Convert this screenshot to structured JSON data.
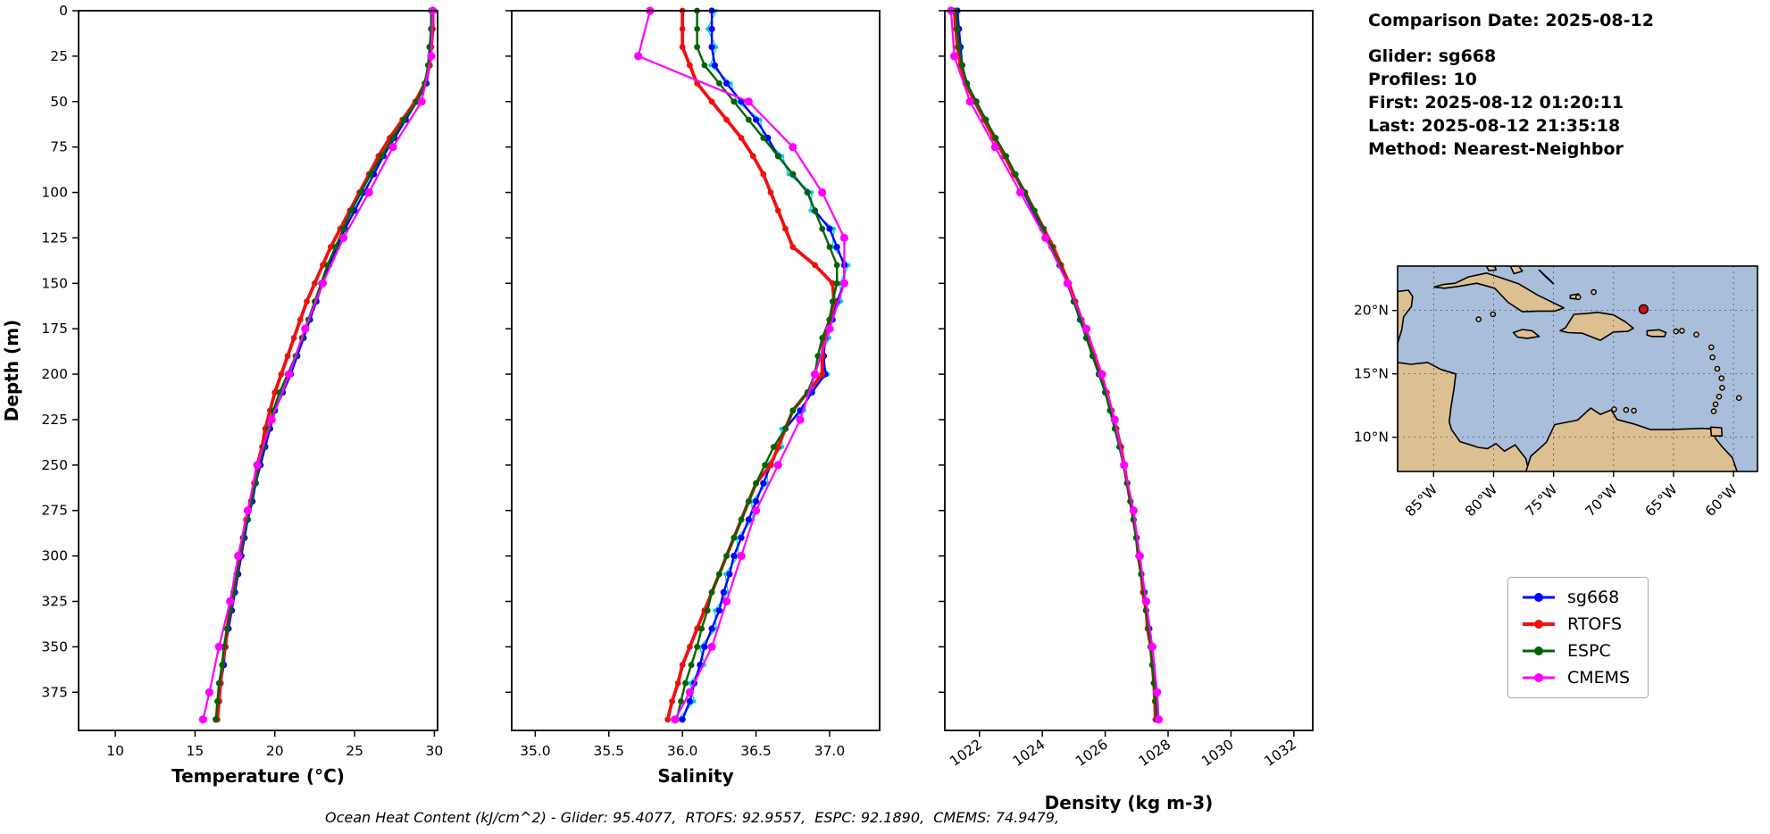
{
  "info": {
    "comparison_date": "Comparison Date: 2025-08-12",
    "glider": "Glider: sg668",
    "profiles": "Profiles: 10",
    "first": "First: 2025-08-12 01:20:11",
    "last": "Last: 2025-08-12 21:35:18",
    "method": "Method: Nearest-Neighbor"
  },
  "footer": {
    "text": "Ocean Heat Content (kJ/cm^2) - Glider: 95.4077,  RTOFS: 92.9557,  ESPC: 92.1890,  CMEMS: 74.9479,"
  },
  "legend": {
    "items": [
      {
        "label": "sg668",
        "color": "#0000ff",
        "lw": 3,
        "ms": 5
      },
      {
        "label": "RTOFS",
        "color": "#ee1111",
        "lw": 4,
        "ms": 5
      },
      {
        "label": "ESPC",
        "color": "#006400",
        "lw": 3,
        "ms": 5
      },
      {
        "label": "CMEMS",
        "color": "#ff00ff",
        "lw": 3,
        "ms": 5
      }
    ]
  },
  "map": {
    "lat_ticks": [
      "20°N",
      "15°N",
      "10°N"
    ],
    "lat_tick_values": [
      20,
      15,
      10
    ],
    "lon_ticks": [
      "85°W",
      "80°W",
      "75°W",
      "70°W",
      "65°W",
      "60°W"
    ],
    "lon_tick_values": [
      -85,
      -80,
      -75,
      -70,
      -65,
      -60
    ],
    "lon_range": [
      -88,
      -58
    ],
    "lat_range": [
      7.3,
      23.5
    ],
    "marker": {
      "lon": -67.5,
      "lat": 20.1,
      "color": "#cc1111"
    },
    "ocean_color": "#a8bedb",
    "land_color": "#ddc092"
  },
  "chart_data": [
    {
      "type": "line",
      "id": "temperature",
      "xlabel": "Temperature (°C)",
      "ylabel": "Depth (m)",
      "xlim": [
        7.7,
        30.2
      ],
      "xticks": [
        10,
        15,
        20,
        25,
        30
      ],
      "xtick_labels": [
        "10",
        "15",
        "20",
        "25",
        "30"
      ],
      "ylim": [
        0,
        396
      ],
      "yticks": [
        0,
        25,
        50,
        75,
        100,
        125,
        150,
        175,
        200,
        225,
        250,
        275,
        300,
        325,
        350,
        375
      ],
      "depth_grids": {
        "fine": [
          0,
          10,
          20,
          30,
          40,
          50,
          60,
          70,
          80,
          90,
          100,
          110,
          120,
          130,
          140,
          150,
          160,
          170,
          180,
          190,
          200,
          210,
          220,
          230,
          240,
          250,
          260,
          270,
          280,
          290,
          300,
          310,
          320,
          330,
          340,
          350,
          360,
          370,
          380,
          390
        ],
        "coarse": [
          0,
          25,
          50,
          75,
          100,
          125,
          150,
          175,
          200,
          225,
          250,
          275,
          300,
          325,
          350,
          375,
          390
        ]
      },
      "series": [
        {
          "name": "glider_raw",
          "color": "#00cfe0",
          "lw": 1.4,
          "ms": 2.2,
          "grid": "fine",
          "values": [
            29.85,
            29.74,
            29.76,
            29.64,
            29.55,
            28.84,
            28.26,
            27.44,
            26.86,
            26.14,
            25.66,
            24.94,
            24.46,
            23.84,
            23.46,
            22.94,
            22.66,
            22.14,
            21.86,
            21.34,
            21.06,
            20.44,
            20.06,
            19.64,
            19.46,
            19.04,
            18.86,
            18.54,
            18.36,
            18.04,
            17.96,
            17.64,
            17.56,
            17.24,
            17.16,
            16.84,
            16.86,
            16.54,
            16.56,
            16.24
          ]
        },
        {
          "name": "sg668",
          "color": "#0000ff",
          "lw": 2.4,
          "ms": 3.6,
          "grid": "fine",
          "values": [
            29.8,
            29.8,
            29.7,
            29.7,
            29.5,
            28.9,
            28.2,
            27.5,
            26.8,
            26.2,
            25.6,
            25.0,
            24.4,
            23.9,
            23.4,
            23.0,
            22.6,
            22.2,
            21.8,
            21.4,
            21.0,
            20.5,
            20.0,
            19.7,
            19.4,
            19.1,
            18.8,
            18.6,
            18.3,
            18.1,
            17.9,
            17.7,
            17.5,
            17.3,
            17.1,
            16.9,
            16.8,
            16.6,
            16.5,
            16.3
          ]
        },
        {
          "name": "RTOFS",
          "color": "#ee1111",
          "lw": 3.8,
          "ms": 3.4,
          "grid": "fine",
          "values": [
            29.9,
            29.9,
            29.8,
            29.7,
            29.4,
            28.8,
            28.0,
            27.2,
            26.5,
            25.9,
            25.3,
            24.7,
            24.1,
            23.5,
            23.0,
            22.5,
            22.0,
            21.6,
            21.2,
            20.8,
            20.4,
            20.0,
            19.7,
            19.4,
            19.2,
            18.9,
            18.7,
            18.5,
            18.2,
            18.0,
            17.8,
            17.6,
            17.4,
            17.2,
            17.0,
            16.9,
            16.7,
            16.6,
            16.5,
            16.4
          ]
        },
        {
          "name": "ESPC",
          "color": "#006400",
          "lw": 2.4,
          "ms": 3.4,
          "grid": "fine",
          "values": [
            29.8,
            29.8,
            29.7,
            29.6,
            29.4,
            28.9,
            28.1,
            27.4,
            26.7,
            26.0,
            25.4,
            24.8,
            24.3,
            23.8,
            23.3,
            22.9,
            22.5,
            22.1,
            21.7,
            21.3,
            20.8,
            20.3,
            19.9,
            19.6,
            19.3,
            19.0,
            18.8,
            18.5,
            18.3,
            18.0,
            17.8,
            17.6,
            17.4,
            17.2,
            17.0,
            16.8,
            16.7,
            16.5,
            16.4,
            16.3
          ]
        },
        {
          "name": "CMEMS",
          "color": "#ff00ff",
          "lw": 2.2,
          "ms": 4.6,
          "grid": "coarse",
          "values": [
            29.9,
            29.8,
            29.2,
            27.4,
            25.9,
            24.3,
            23.0,
            21.9,
            20.9,
            19.8,
            18.9,
            18.3,
            17.7,
            17.2,
            16.5,
            15.9,
            15.5
          ]
        }
      ]
    },
    {
      "type": "line",
      "id": "salinity",
      "xlabel": "Salinity",
      "ylabel": "",
      "xlim": [
        34.84,
        37.34
      ],
      "xticks": [
        35.0,
        35.5,
        36.0,
        36.5,
        37.0
      ],
      "xtick_labels": [
        "35.0",
        "35.5",
        "36.0",
        "36.5",
        "37.0"
      ],
      "ylim": [
        0,
        396
      ],
      "yticks": [
        0,
        25,
        50,
        75,
        100,
        125,
        150,
        175,
        200,
        225,
        250,
        275,
        300,
        325,
        350,
        375
      ],
      "depth_grids": {
        "fine": [
          0,
          10,
          20,
          30,
          40,
          50,
          60,
          70,
          80,
          90,
          100,
          110,
          120,
          130,
          140,
          150,
          160,
          170,
          180,
          190,
          200,
          210,
          220,
          230,
          240,
          250,
          260,
          270,
          280,
          290,
          300,
          310,
          320,
          330,
          340,
          350,
          360,
          370,
          380,
          390
        ],
        "coarse": [
          0,
          25,
          50,
          75,
          100,
          125,
          150,
          175,
          200,
          225,
          250,
          275,
          300,
          325,
          350,
          375,
          390
        ]
      },
      "series": [
        {
          "name": "glider_raw",
          "color": "#00cfe0",
          "lw": 1.4,
          "ms": 2.2,
          "grid": "fine",
          "values": [
            36.23,
            36.17,
            36.23,
            36.19,
            36.33,
            36.37,
            36.53,
            36.55,
            36.68,
            36.72,
            36.88,
            36.87,
            37.03,
            37.02,
            37.13,
            37.07,
            37.08,
            36.99,
            37.0,
            36.93,
            36.99,
            36.85,
            36.83,
            36.67,
            36.68,
            36.57,
            36.58,
            36.47,
            36.48,
            36.37,
            36.38,
            36.29,
            36.31,
            36.22,
            36.23,
            36.12,
            36.15,
            36.05,
            36.08,
            35.97
          ]
        },
        {
          "name": "sg668",
          "color": "#0000ff",
          "lw": 2.4,
          "ms": 3.6,
          "grid": "fine",
          "values": [
            36.2,
            36.2,
            36.2,
            36.22,
            36.3,
            36.4,
            36.5,
            36.58,
            36.65,
            36.75,
            36.85,
            36.9,
            37.0,
            37.05,
            37.1,
            37.1,
            37.05,
            37.02,
            36.97,
            36.96,
            36.97,
            36.88,
            36.8,
            36.7,
            36.65,
            36.6,
            36.55,
            36.5,
            36.45,
            36.4,
            36.35,
            36.32,
            36.28,
            36.25,
            36.2,
            36.15,
            36.12,
            36.08,
            36.05,
            36.0
          ]
        },
        {
          "name": "RTOFS",
          "color": "#ee1111",
          "lw": 3.8,
          "ms": 3.4,
          "grid": "fine",
          "values": [
            36.0,
            36.0,
            36.0,
            36.05,
            36.1,
            36.2,
            36.3,
            36.4,
            36.48,
            36.55,
            36.6,
            36.65,
            36.7,
            36.75,
            36.9,
            37.02,
            37.03,
            37.0,
            36.96,
            36.95,
            36.95,
            36.85,
            36.75,
            36.7,
            36.65,
            36.6,
            36.5,
            36.45,
            36.4,
            36.35,
            36.3,
            36.25,
            36.2,
            36.15,
            36.1,
            36.05,
            36.0,
            35.97,
            35.93,
            35.9
          ]
        },
        {
          "name": "ESPC",
          "color": "#006400",
          "lw": 2.4,
          "ms": 3.4,
          "grid": "fine",
          "values": [
            36.1,
            36.1,
            36.1,
            36.15,
            36.25,
            36.35,
            36.45,
            36.55,
            36.65,
            36.75,
            36.85,
            36.9,
            36.95,
            37.0,
            37.05,
            37.05,
            37.02,
            37.0,
            36.95,
            36.92,
            36.9,
            36.85,
            36.75,
            36.7,
            36.62,
            36.56,
            36.5,
            36.45,
            36.4,
            36.35,
            36.3,
            36.25,
            36.2,
            36.17,
            36.13,
            36.1,
            36.06,
            36.02,
            35.99,
            35.96
          ]
        },
        {
          "name": "CMEMS",
          "color": "#ff00ff",
          "lw": 2.2,
          "ms": 4.6,
          "grid": "coarse",
          "values": [
            35.78,
            35.7,
            36.45,
            36.75,
            36.95,
            37.1,
            37.1,
            37.0,
            36.9,
            36.8,
            36.65,
            36.5,
            36.4,
            36.3,
            36.2,
            36.05,
            35.95
          ]
        }
      ]
    },
    {
      "type": "line",
      "id": "density",
      "xlabel": "Density (kg m-3)",
      "ylabel": "",
      "xlim": [
        1020.9,
        1032.6
      ],
      "xticks": [
        1022,
        1024,
        1026,
        1028,
        1030,
        1032
      ],
      "xtick_labels": [
        "1022",
        "1024",
        "1026",
        "1028",
        "1030",
        "1032"
      ],
      "ylim": [
        0,
        396
      ],
      "yticks": [
        0,
        25,
        50,
        75,
        100,
        125,
        150,
        175,
        200,
        225,
        250,
        275,
        300,
        325,
        350,
        375
      ],
      "depth_grids": {
        "fine": [
          0,
          10,
          20,
          30,
          40,
          50,
          60,
          70,
          80,
          90,
          100,
          110,
          120,
          130,
          140,
          150,
          160,
          170,
          180,
          190,
          200,
          210,
          220,
          230,
          240,
          250,
          260,
          270,
          280,
          290,
          300,
          310,
          320,
          330,
          340,
          350,
          360,
          370,
          380,
          390
        ],
        "coarse": [
          0,
          25,
          50,
          75,
          100,
          125,
          150,
          175,
          200,
          225,
          250,
          275,
          300,
          325,
          350,
          375,
          390
        ]
      },
      "series": [
        {
          "name": "glider_raw",
          "color": "#00cfe0",
          "lw": 1.4,
          "ms": 2.2,
          "grid": "fine",
          "values": [
            1021.34,
            1021.31,
            1021.44,
            1021.41,
            1021.64,
            1021.86,
            1022.24,
            1022.46,
            1022.84,
            1023.06,
            1023.44,
            1023.66,
            1024.04,
            1024.26,
            1024.59,
            1024.76,
            1025.04,
            1025.16,
            1025.44,
            1025.56,
            1025.84,
            1025.96,
            1026.24,
            1026.31,
            1026.54,
            1026.56,
            1026.74,
            1026.76,
            1026.94,
            1026.96,
            1027.14,
            1027.11,
            1027.29,
            1027.26,
            1027.44,
            1027.41,
            1027.54,
            1027.51,
            1027.64,
            1027.61
          ]
        },
        {
          "name": "sg668",
          "color": "#0000ff",
          "lw": 2.4,
          "ms": 3.6,
          "grid": "fine",
          "values": [
            1021.3,
            1021.35,
            1021.4,
            1021.45,
            1021.6,
            1021.9,
            1022.2,
            1022.5,
            1022.8,
            1023.1,
            1023.4,
            1023.7,
            1024.0,
            1024.3,
            1024.55,
            1024.8,
            1025.0,
            1025.2,
            1025.4,
            1025.6,
            1025.8,
            1026.0,
            1026.2,
            1026.35,
            1026.5,
            1026.6,
            1026.7,
            1026.8,
            1026.9,
            1027.0,
            1027.1,
            1027.15,
            1027.25,
            1027.3,
            1027.4,
            1027.45,
            1027.5,
            1027.55,
            1027.6,
            1027.65
          ]
        },
        {
          "name": "RTOFS",
          "color": "#ee1111",
          "lw": 3.8,
          "ms": 3.4,
          "grid": "fine",
          "values": [
            1021.2,
            1021.25,
            1021.3,
            1021.4,
            1021.55,
            1021.85,
            1022.15,
            1022.45,
            1022.8,
            1023.1,
            1023.45,
            1023.75,
            1024.05,
            1024.35,
            1024.6,
            1024.85,
            1025.05,
            1025.25,
            1025.45,
            1025.65,
            1025.85,
            1026.05,
            1026.2,
            1026.35,
            1026.5,
            1026.6,
            1026.7,
            1026.8,
            1026.9,
            1027.0,
            1027.05,
            1027.15,
            1027.2,
            1027.3,
            1027.35,
            1027.45,
            1027.5,
            1027.55,
            1027.58,
            1027.6
          ]
        },
        {
          "name": "ESPC",
          "color": "#006400",
          "lw": 2.4,
          "ms": 3.4,
          "grid": "fine",
          "values": [
            1021.25,
            1021.3,
            1021.35,
            1021.45,
            1021.6,
            1021.9,
            1022.2,
            1022.52,
            1022.85,
            1023.15,
            1023.45,
            1023.75,
            1024.02,
            1024.3,
            1024.55,
            1024.8,
            1025.0,
            1025.2,
            1025.4,
            1025.6,
            1025.8,
            1026.0,
            1026.15,
            1026.3,
            1026.45,
            1026.58,
            1026.7,
            1026.8,
            1026.9,
            1026.98,
            1027.06,
            1027.14,
            1027.24,
            1027.3,
            1027.38,
            1027.44,
            1027.5,
            1027.55,
            1027.6,
            1027.64
          ]
        },
        {
          "name": "CMEMS",
          "color": "#ff00ff",
          "lw": 2.2,
          "ms": 4.6,
          "grid": "coarse",
          "values": [
            1021.1,
            1021.2,
            1021.7,
            1022.5,
            1023.3,
            1024.1,
            1024.8,
            1025.4,
            1025.9,
            1026.3,
            1026.6,
            1026.9,
            1027.1,
            1027.3,
            1027.5,
            1027.65,
            1027.7
          ]
        }
      ]
    }
  ]
}
